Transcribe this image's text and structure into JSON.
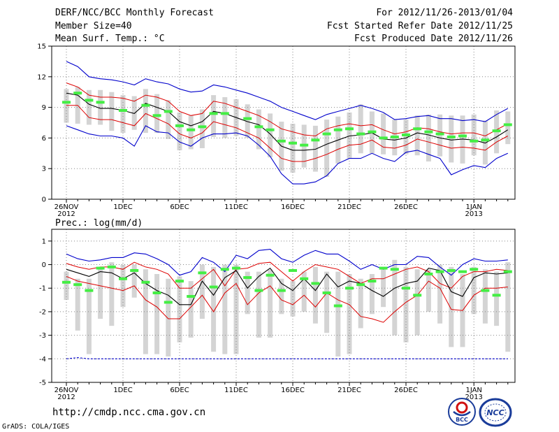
{
  "header": {
    "title": "DERF/NCC/BCC Monthly Forecast",
    "member": "Member Size=40",
    "variable": "Mean Surf. Temp.: °C",
    "period": "For 2012/11/26-2013/01/04",
    "started": "Fcst Started Refer Date 2012/11/25",
    "produced": "Fcst Produced Date 2012/11/26"
  },
  "footer": {
    "url": "http://cmdp.ncc.cma.gov.cn",
    "grads": "GrADS: COLA/IGES"
  },
  "logos": {
    "bcc": "BCC",
    "ncc": "NCC"
  },
  "colors": {
    "max": "#0000cc",
    "percentile": "#dd0000",
    "mean": "#000000",
    "median": "#44ee44",
    "box": "#d4d4d4",
    "grid": "#888888"
  },
  "x_labels": [
    {
      "day": 0,
      "label": "26NOV",
      "sub": "2012"
    },
    {
      "day": 5,
      "label": "1DEC"
    },
    {
      "day": 10,
      "label": "6DEC"
    },
    {
      "day": 15,
      "label": "11DEC"
    },
    {
      "day": 20,
      "label": "16DEC"
    },
    {
      "day": 25,
      "label": "21DEC"
    },
    {
      "day": 30,
      "label": "26DEC"
    },
    {
      "day": 36,
      "label": "1JAN",
      "sub": "2013"
    }
  ],
  "chart_data": [
    {
      "type": "box-ensemble",
      "title": "Mean Surf. Temp.: °C",
      "xlabel": "",
      "ylabel": "",
      "ylim": [
        0,
        15
      ],
      "yticks": [
        0,
        3,
        6,
        9,
        12,
        15
      ],
      "days": 40,
      "series": [
        {
          "name": "max",
          "values": [
            13.5,
            13.0,
            12.0,
            11.8,
            11.7,
            11.5,
            11.2,
            11.8,
            11.5,
            11.3,
            10.8,
            10.5,
            10.6,
            11.2,
            11.0,
            10.7,
            10.4,
            10.0,
            9.6,
            9.0,
            8.6,
            8.2,
            7.8,
            8.3,
            8.6,
            8.9,
            9.2,
            8.9,
            8.5,
            7.8,
            7.9,
            8.1,
            8.2,
            7.9,
            7.9,
            7.7,
            7.8,
            7.6,
            8.3,
            8.9
          ]
        },
        {
          "name": "p90",
          "values": [
            11.4,
            11.0,
            10.2,
            10.0,
            10.0,
            9.9,
            9.6,
            10.2,
            10.0,
            9.6,
            8.6,
            8.2,
            8.4,
            9.6,
            9.4,
            9.0,
            8.6,
            8.2,
            7.6,
            6.9,
            6.6,
            6.3,
            6.2,
            6.9,
            7.2,
            7.4,
            7.2,
            7.3,
            6.8,
            6.4,
            6.6,
            7.0,
            6.9,
            6.6,
            6.4,
            6.5,
            6.5,
            6.2,
            6.8,
            7.4
          ]
        },
        {
          "name": "mean",
          "values": [
            10.4,
            10.2,
            9.3,
            8.9,
            8.9,
            8.7,
            8.4,
            9.4,
            9.0,
            8.6,
            7.6,
            7.2,
            7.6,
            8.6,
            8.4,
            8.0,
            7.6,
            7.3,
            6.4,
            5.2,
            4.8,
            4.8,
            4.9,
            5.4,
            5.8,
            6.2,
            6.3,
            6.5,
            5.9,
            5.8,
            6.0,
            6.5,
            6.3,
            6.0,
            5.8,
            5.9,
            5.8,
            5.5,
            6.1,
            6.8
          ]
        },
        {
          "name": "p10",
          "values": [
            9.2,
            9.2,
            8.0,
            7.8,
            7.8,
            7.5,
            7.2,
            8.4,
            7.9,
            7.4,
            6.4,
            6.0,
            6.5,
            7.6,
            7.3,
            7.0,
            6.5,
            6.0,
            5.0,
            4.0,
            3.7,
            3.7,
            4.0,
            4.4,
            4.9,
            5.3,
            5.4,
            5.8,
            5.1,
            5.0,
            5.3,
            5.9,
            5.6,
            5.3,
            5.0,
            5.1,
            5.0,
            4.8,
            5.6,
            6.2
          ]
        },
        {
          "name": "min",
          "values": [
            7.2,
            6.8,
            6.4,
            6.2,
            6.2,
            6.0,
            5.2,
            7.2,
            6.6,
            6.5,
            5.6,
            5.2,
            6.0,
            6.4,
            6.4,
            6.5,
            6.2,
            5.3,
            4.2,
            2.5,
            1.5,
            1.5,
            1.7,
            2.3,
            3.5,
            4.0,
            4.0,
            4.5,
            4.0,
            3.7,
            4.6,
            4.8,
            4.4,
            4.0,
            2.4,
            2.9,
            3.3,
            3.1,
            4.0,
            4.5
          ]
        },
        {
          "name": "median",
          "values": [
            9.5,
            10.4,
            9.7,
            9.5,
            null,
            8.7,
            null,
            9.2,
            8.2,
            8.6,
            7.2,
            6.8,
            7.1,
            8.4,
            8.4,
            null,
            7.9,
            7.1,
            6.8,
            5.7,
            5.5,
            5.3,
            5.8,
            6.4,
            6.8,
            6.9,
            6.4,
            6.6,
            6.0,
            6.1,
            6.3,
            6.9,
            6.6,
            6.4,
            6.1,
            6.2,
            5.7,
            5.8,
            6.7,
            7.3
          ]
        },
        {
          "name": "box_high",
          "values": [
            10.8,
            11.0,
            10.7,
            10.7,
            10.5,
            10.2,
            10.1,
            10.8,
            10.3,
            9.7,
            8.5,
            8.2,
            8.8,
            10.2,
            10.0,
            9.8,
            9.3,
            8.8,
            8.4,
            7.6,
            7.4,
            7.3,
            7.2,
            7.8,
            8.1,
            8.5,
            9.3,
            8.6,
            8.4,
            7.8,
            7.8,
            8.2,
            8.3,
            8.3,
            8.2,
            8.2,
            8.3,
            7.7,
            8.7,
            8.6
          ]
        },
        {
          "name": "box_low",
          "values": [
            7.5,
            7.4,
            7.3,
            7.3,
            6.7,
            6.5,
            6.8,
            6.5,
            6.5,
            5.9,
            4.8,
            4.9,
            5.0,
            6.1,
            6.0,
            6.2,
            6.0,
            4.9,
            4.1,
            2.8,
            2.6,
            3.1,
            2.7,
            2.2,
            3.5,
            4.0,
            4.5,
            4.5,
            4.4,
            4.3,
            4.4,
            4.3,
            3.7,
            4.2,
            3.6,
            3.5,
            4.3,
            3.4,
            4.5,
            5.4
          ]
        }
      ]
    },
    {
      "type": "box-ensemble",
      "title": "Prec.: log(mm/d)",
      "xlabel": "",
      "ylabel": "",
      "ylim": [
        -5,
        1.5
      ],
      "yticks": [
        -5,
        -4,
        -3,
        -2,
        -1,
        0,
        1
      ],
      "days": 40,
      "series": [
        {
          "name": "max",
          "values": [
            0.45,
            0.25,
            0.15,
            0.2,
            0.3,
            0.3,
            0.5,
            0.45,
            0.25,
            0.0,
            -0.45,
            -0.3,
            0.3,
            0.1,
            -0.3,
            0.4,
            0.25,
            0.6,
            0.65,
            0.25,
            0.1,
            0.4,
            0.6,
            0.45,
            0.45,
            0.15,
            -0.2,
            0.0,
            -0.2,
            0.0,
            0.0,
            0.35,
            0.3,
            -0.1,
            -0.45,
            0.0,
            0.25,
            0.15,
            0.15,
            0.2
          ]
        },
        {
          "name": "p90",
          "values": [
            0.05,
            -0.1,
            -0.2,
            -0.1,
            -0.1,
            -0.2,
            0.1,
            -0.1,
            -0.2,
            -0.4,
            -1.0,
            -1.0,
            -0.6,
            -0.2,
            -0.9,
            -0.2,
            -0.15,
            0.05,
            0.1,
            -0.3,
            -0.7,
            -0.3,
            0.0,
            -0.1,
            -0.2,
            -0.5,
            -0.8,
            -0.6,
            -0.6,
            -0.4,
            -0.2,
            -0.1,
            -0.3,
            -0.8,
            -1.0,
            -0.5,
            -0.3,
            -0.3,
            -0.2,
            -0.25
          ]
        },
        {
          "name": "mean",
          "values": [
            -0.2,
            -0.35,
            -0.5,
            -0.3,
            -0.35,
            -0.6,
            -0.35,
            -0.8,
            -1.1,
            -1.3,
            -1.7,
            -1.7,
            -0.7,
            -1.3,
            -0.55,
            -0.25,
            -1.0,
            -0.5,
            -0.15,
            -0.8,
            -1.1,
            -0.6,
            -1.1,
            -0.4,
            -0.95,
            -0.7,
            -0.8,
            -1.1,
            -1.35,
            -1.0,
            -0.8,
            -0.7,
            -0.15,
            -0.25,
            -1.15,
            -1.35,
            -0.55,
            -0.35,
            -0.4,
            -0.35
          ]
        },
        {
          "name": "p10",
          "values": [
            -0.5,
            -0.7,
            -0.8,
            -0.9,
            -1.0,
            -1.1,
            -0.9,
            -1.5,
            -1.8,
            -2.3,
            -2.3,
            -1.8,
            -1.3,
            -2.0,
            -1.2,
            -0.8,
            -1.7,
            -1.2,
            -0.9,
            -1.5,
            -1.7,
            -1.3,
            -1.8,
            -1.2,
            -1.5,
            -1.7,
            -2.2,
            -2.3,
            -2.45,
            -2.0,
            -1.6,
            -1.3,
            -0.7,
            -1.0,
            -1.9,
            -1.95,
            -1.3,
            -1.0,
            -1.0,
            -0.95
          ]
        },
        {
          "name": "min",
          "values": [
            -4.0,
            -3.95,
            -4.0,
            -4.0,
            -4.0,
            -4.0,
            -4.0,
            -4.0,
            -4.0,
            -4.0,
            -4.0,
            -4.0,
            -4.0,
            -4.0,
            -4.0,
            -4.0,
            -4.0,
            -4.0,
            -4.0,
            -4.0,
            -4.0,
            -4.0,
            -4.0,
            -4.0,
            -4.0,
            -4.0,
            -4.0,
            -4.0,
            -4.0,
            -4.0,
            -4.0,
            -4.0,
            -4.0,
            -4.0,
            -4.0,
            -4.0,
            -4.0,
            -4.0,
            -4.0,
            -4.0
          ]
        },
        {
          "name": "median",
          "values": [
            -0.75,
            -0.85,
            -1.1,
            -0.15,
            -0.1,
            -0.6,
            -0.25,
            -0.75,
            -1.2,
            -1.6,
            -0.7,
            -1.35,
            -0.35,
            -0.95,
            -0.2,
            -0.15,
            -0.55,
            -1.1,
            -0.45,
            -1.1,
            -0.25,
            -0.6,
            -0.8,
            -1.2,
            -1.75,
            -1.0,
            -0.85,
            -0.7,
            -0.15,
            -0.2,
            -1.0,
            -1.3,
            -0.4,
            -0.3,
            -0.25,
            -0.3,
            -0.2,
            -1.1,
            -1.3,
            -0.3
          ]
        },
        {
          "name": "box_high",
          "values": [
            -0.3,
            -0.6,
            -0.6,
            -0.2,
            0.1,
            0.0,
            0.0,
            -0.2,
            -0.4,
            -0.6,
            -0.5,
            -0.7,
            0.0,
            -0.1,
            0.0,
            0.0,
            -0.3,
            -0.3,
            -0.2,
            -0.6,
            -0.7,
            -0.3,
            -0.1,
            -0.3,
            -0.3,
            -0.4,
            -0.6,
            -0.4,
            -0.1,
            0.2,
            -0.1,
            -0.2,
            -0.2,
            0.0,
            -0.1,
            -0.4,
            -0.1,
            -0.2,
            -0.3,
            0.1
          ]
        },
        {
          "name": "box_low",
          "values": [
            -1.5,
            -2.8,
            -3.8,
            -2.3,
            -2.6,
            -1.8,
            -1.4,
            -3.8,
            -3.8,
            -3.9,
            -3.3,
            -3.1,
            -2.3,
            -3.7,
            -3.8,
            -3.8,
            -2.1,
            -3.1,
            -3.1,
            -2.1,
            -2.2,
            -2.0,
            -2.5,
            -2.9,
            -3.9,
            -3.8,
            -2.7,
            -2.1,
            -1.8,
            -3.0,
            -3.3,
            -3.0,
            -2.0,
            -2.5,
            -3.5,
            -3.5,
            -2.1,
            -2.5,
            -2.6,
            -3.7
          ]
        }
      ]
    }
  ]
}
